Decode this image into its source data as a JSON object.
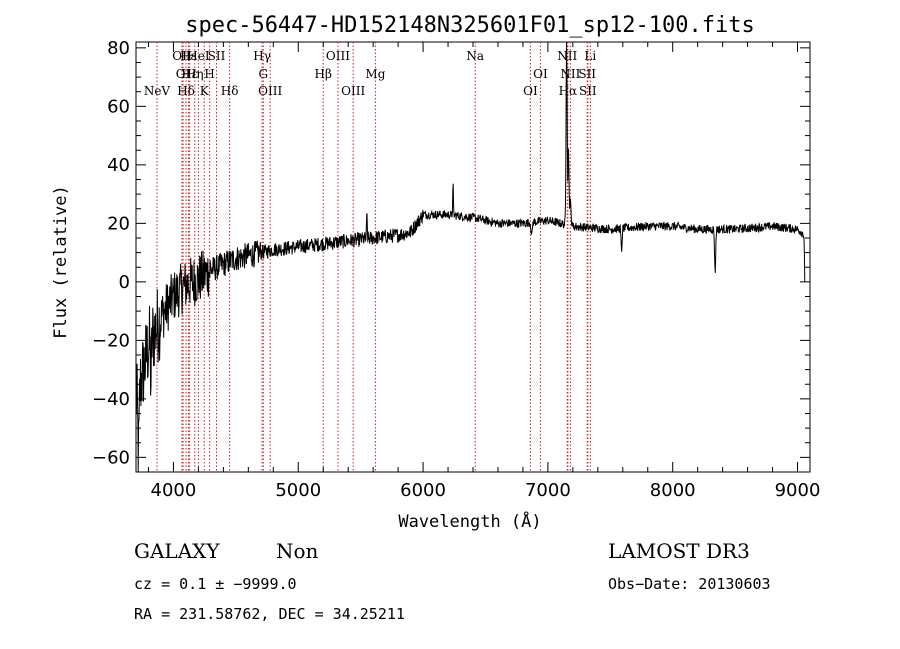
{
  "chart_data": {
    "type": "line",
    "title": "spec-56447-HD152148N325601F01_sp12-100.fits",
    "xlabel": "Wavelength (Å)",
    "ylabel": "Flux (relative)",
    "xlim": [
      3700,
      9100
    ],
    "ylim": [
      -65,
      82
    ],
    "xticks": [
      {
        "value": 4000,
        "label": "4000"
      },
      {
        "value": 5000,
        "label": "5000"
      },
      {
        "value": 6000,
        "label": "6000"
      },
      {
        "value": 7000,
        "label": "7000"
      },
      {
        "value": 8000,
        "label": "8000"
      },
      {
        "value": 9000,
        "label": "9000"
      }
    ],
    "yticks": [
      {
        "value": 80,
        "label": "80"
      },
      {
        "value": 60,
        "label": "60"
      },
      {
        "value": 40,
        "label": "40"
      },
      {
        "value": 20,
        "label": "20"
      },
      {
        "value": 0,
        "label": "0"
      },
      {
        "value": -20,
        "label": "−20"
      },
      {
        "value": -40,
        "label": "−40"
      },
      {
        "value": -60,
        "label": "−60"
      }
    ],
    "spectrum_anchors": [
      [
        3700,
        -40
      ],
      [
        3750,
        -32
      ],
      [
        3800,
        -22
      ],
      [
        3900,
        -12
      ],
      [
        4000,
        -5
      ],
      [
        4100,
        -1
      ],
      [
        4200,
        1
      ],
      [
        4300,
        4
      ],
      [
        4400,
        6
      ],
      [
        4500,
        8
      ],
      [
        4600,
        9
      ],
      [
        4700,
        10
      ],
      [
        4800,
        11
      ],
      [
        5000,
        12
      ],
      [
        5200,
        13
      ],
      [
        5400,
        14
      ],
      [
        5600,
        15
      ],
      [
        5800,
        16
      ],
      [
        5900,
        17
      ],
      [
        5950,
        20
      ],
      [
        6000,
        23
      ],
      [
        6200,
        23
      ],
      [
        6400,
        22
      ],
      [
        6600,
        20
      ],
      [
        6800,
        20
      ],
      [
        7000,
        21
      ],
      [
        7100,
        20
      ],
      [
        7200,
        19
      ],
      [
        7500,
        18
      ],
      [
        7800,
        19
      ],
      [
        8000,
        19
      ],
      [
        8200,
        18
      ],
      [
        8500,
        18
      ],
      [
        8800,
        19
      ],
      [
        9000,
        18
      ],
      [
        9060,
        16
      ]
    ],
    "spectrum_features": [
      {
        "x": 7150,
        "height": 65,
        "width": 6
      },
      {
        "x": 7165,
        "height": 25,
        "width": 6
      },
      {
        "x": 7180,
        "height": 8,
        "width": 8
      },
      {
        "x": 6240,
        "height": 10,
        "width": 4
      },
      {
        "x": 5550,
        "height": 8,
        "width": 4
      },
      {
        "x": 8340,
        "height": -15,
        "width": 6
      },
      {
        "x": 7590,
        "height": -8,
        "width": 6
      },
      {
        "x": 6870,
        "height": -5,
        "width": 6
      },
      {
        "x": 3720,
        "height": -22,
        "width": 8
      },
      {
        "x": 3820,
        "height": -14,
        "width": 6
      },
      {
        "x": 9060,
        "height": -18,
        "width": 5
      }
    ],
    "emission_lines": [
      {
        "x": 3868,
        "label": "NeV",
        "row": 3
      },
      {
        "x": 4068,
        "label": "OII",
        "row": 1
      },
      {
        "x": 4077,
        "label": "OI",
        "row": 2
      },
      {
        "x": 4101,
        "label": "Hδ",
        "row": 3
      },
      {
        "x": 4120,
        "label": "Hε",
        "row": 1
      },
      {
        "x": 4130,
        "label": "Hε",
        "row": 2
      },
      {
        "x": 4171,
        "label": "Hη",
        "row": 2
      },
      {
        "x": 4200,
        "label": "HeI",
        "row": 1
      },
      {
        "x": 4247,
        "label": "K",
        "row": 3
      },
      {
        "x": 4290,
        "label": "H",
        "row": 2
      },
      {
        "x": 4345,
        "label": "SII",
        "row": 1
      },
      {
        "x": 4450,
        "label": "Hδ",
        "row": 3
      },
      {
        "x": 4710,
        "label": "Hγ",
        "row": 1
      },
      {
        "x": 4720,
        "label": "G",
        "row": 2
      },
      {
        "x": 4775,
        "label": "OIII",
        "row": 3
      },
      {
        "x": 5200,
        "label": "Hβ",
        "row": 2
      },
      {
        "x": 5318,
        "label": "OIII",
        "row": 1
      },
      {
        "x": 5440,
        "label": "OIII",
        "row": 3
      },
      {
        "x": 5618,
        "label": "Mg",
        "row": 2
      },
      {
        "x": 6418,
        "label": "Na",
        "row": 1
      },
      {
        "x": 6860,
        "label": "OI",
        "row": 3
      },
      {
        "x": 6940,
        "label": "OI",
        "row": 2
      },
      {
        "x": 7155,
        "label": "NII",
        "row": 1
      },
      {
        "x": 7180,
        "label": "NII",
        "row": 2
      },
      {
        "x": 7160,
        "label": "Hα",
        "row": 3
      },
      {
        "x": 7315,
        "label": "SII",
        "row": 2
      },
      {
        "x": 7340,
        "label": "Li",
        "row": 1
      },
      {
        "x": 7320,
        "label": "SII",
        "row": 3
      }
    ]
  },
  "info": {
    "class": "GALAXY",
    "subclass": "Non",
    "survey": "LAMOST DR3",
    "cz": "cz = 0.1 ± −9999.0",
    "obs_date": "Obs−Date: 20130603",
    "coords": "RA = 231.58762, DEC =  34.25211"
  }
}
